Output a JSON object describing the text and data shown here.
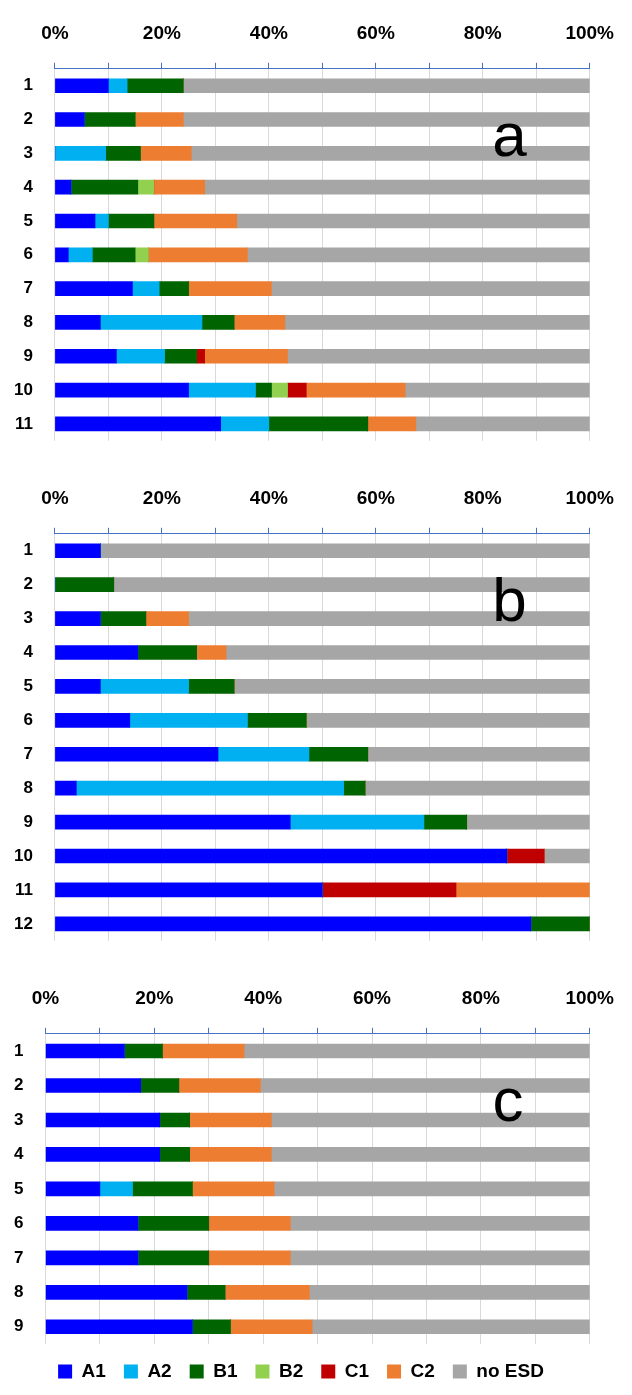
{
  "chart_data": [
    {
      "type": "bar",
      "orientation": "horizontal",
      "stacked": true,
      "categories": [
        "1",
        "2",
        "3",
        "4",
        "5",
        "6",
        "7",
        "8",
        "9",
        "10",
        "11"
      ],
      "series": [
        {
          "color": "#0000ff",
          "values": [
            10,
            5.5,
            0,
            3,
            7.5,
            2.5,
            14.5,
            8.5,
            11.5,
            25,
            31
          ]
        },
        {
          "color": "#00b0f0",
          "values": [
            3.5,
            0,
            9.5,
            0,
            2.5,
            4.5,
            5,
            19,
            9,
            12.5,
            9
          ]
        },
        {
          "color": "#006400",
          "values": [
            10.5,
            9.5,
            6.5,
            12.5,
            8.5,
            8,
            5.5,
            6,
            6,
            3,
            18.5
          ]
        },
        {
          "color": "#92d050",
          "values": [
            0,
            0,
            0,
            3,
            0,
            2.5,
            0,
            0,
            0,
            3,
            0
          ]
        },
        {
          "color": "#c00000",
          "values": [
            0,
            0,
            0,
            0,
            0,
            0,
            0,
            0,
            1.5,
            3.5,
            0
          ]
        },
        {
          "color": "#ed7d31",
          "values": [
            0,
            9,
            9.5,
            9.5,
            15.5,
            18.5,
            15.5,
            9.5,
            15.5,
            18.5,
            9
          ]
        },
        {
          "color": "#a6a6a6",
          "values": [
            76,
            76,
            74.5,
            72,
            66,
            64,
            59.5,
            57,
            56.5,
            34.5,
            32.5
          ]
        }
      ],
      "xlim": [
        0,
        100
      ],
      "xticks": [
        {
          "value": 0,
          "label": "0%"
        },
        {
          "value": 20,
          "label": "20%"
        },
        {
          "value": 40,
          "label": "40%"
        },
        {
          "value": 60,
          "label": "60%"
        },
        {
          "value": 80,
          "label": "80%"
        },
        {
          "value": 100,
          "label": "100%"
        }
      ],
      "grid": "x",
      "annotations": [
        "a"
      ]
    },
    {
      "type": "bar",
      "orientation": "horizontal",
      "stacked": true,
      "categories": [
        "1",
        "2",
        "3",
        "4",
        "5",
        "6",
        "7",
        "8",
        "9",
        "10",
        "11",
        "12"
      ],
      "series": [
        {
          "color": "#0000ff",
          "values": [
            8.5,
            0,
            8.5,
            15.5,
            8.5,
            14,
            30.5,
            4,
            44,
            84.5,
            50,
            89
          ]
        },
        {
          "color": "#00b0f0",
          "values": [
            0,
            0,
            0,
            0,
            16.5,
            22,
            17,
            50,
            25,
            0,
            0,
            0
          ]
        },
        {
          "color": "#006400",
          "values": [
            0,
            11,
            8.5,
            11,
            8.5,
            11,
            11,
            4,
            8,
            0,
            0,
            11
          ]
        },
        {
          "color": "#92d050",
          "values": [
            0,
            0,
            0,
            0,
            0,
            0,
            0,
            0,
            0,
            0,
            0,
            0
          ]
        },
        {
          "color": "#c00000",
          "values": [
            0,
            0,
            0,
            0,
            0,
            0,
            0,
            0,
            0,
            7,
            25,
            0
          ]
        },
        {
          "color": "#ed7d31",
          "values": [
            0,
            0,
            8,
            5.5,
            0,
            0,
            0,
            0,
            0,
            0,
            25,
            0
          ]
        },
        {
          "color": "#a6a6a6",
          "values": [
            91.5,
            89,
            75,
            68,
            66.5,
            53,
            41.5,
            42,
            23,
            8.5,
            0,
            0
          ]
        }
      ],
      "xlim": [
        0,
        100
      ],
      "xticks": [
        {
          "value": 0,
          "label": "0%"
        },
        {
          "value": 20,
          "label": "20%"
        },
        {
          "value": 40,
          "label": "40%"
        },
        {
          "value": 60,
          "label": "60%"
        },
        {
          "value": 80,
          "label": "80%"
        },
        {
          "value": 100,
          "label": "100%"
        }
      ],
      "grid": "x",
      "annotations": [
        "b"
      ]
    },
    {
      "type": "bar",
      "orientation": "horizontal",
      "stacked": true,
      "categories": [
        "1",
        "2",
        "3",
        "4",
        "5",
        "6",
        "7",
        "8",
        "9"
      ],
      "series": [
        {
          "name": "A1",
          "color": "#0000ff",
          "values": [
            14.5,
            17.5,
            21,
            21,
            10,
            17,
            17,
            26,
            27
          ]
        },
        {
          "name": "A2",
          "color": "#00b0f0",
          "values": [
            0,
            0,
            0,
            0,
            6,
            0,
            0,
            0,
            0
          ]
        },
        {
          "name": "B1",
          "color": "#006400",
          "values": [
            7,
            7,
            5.5,
            5.5,
            11,
            13,
            13,
            7,
            7
          ]
        },
        {
          "name": "B2",
          "color": "#92d050",
          "values": [
            0,
            0,
            0,
            0,
            0,
            0,
            0,
            0,
            0
          ]
        },
        {
          "name": "C1",
          "color": "#c00000",
          "values": [
            0,
            0,
            0,
            0,
            0,
            0,
            0,
            0,
            0
          ]
        },
        {
          "name": "C2",
          "color": "#ed7d31",
          "values": [
            15,
            15,
            15,
            15,
            15,
            15,
            15,
            15.5,
            15
          ]
        },
        {
          "name": "no ESD",
          "color": "#a6a6a6",
          "values": [
            63.5,
            60.5,
            58.5,
            58.5,
            58,
            55,
            55,
            51.5,
            51
          ]
        }
      ],
      "xlim": [
        0,
        100
      ],
      "xticks": [
        {
          "value": 0,
          "label": "0%"
        },
        {
          "value": 20,
          "label": "20%"
        },
        {
          "value": 40,
          "label": "40%"
        },
        {
          "value": 60,
          "label": "60%"
        },
        {
          "value": 80,
          "label": "80%"
        },
        {
          "value": 100,
          "label": "100%"
        }
      ],
      "grid": "x",
      "legend": "bottom",
      "annotations": [
        "c"
      ]
    }
  ]
}
